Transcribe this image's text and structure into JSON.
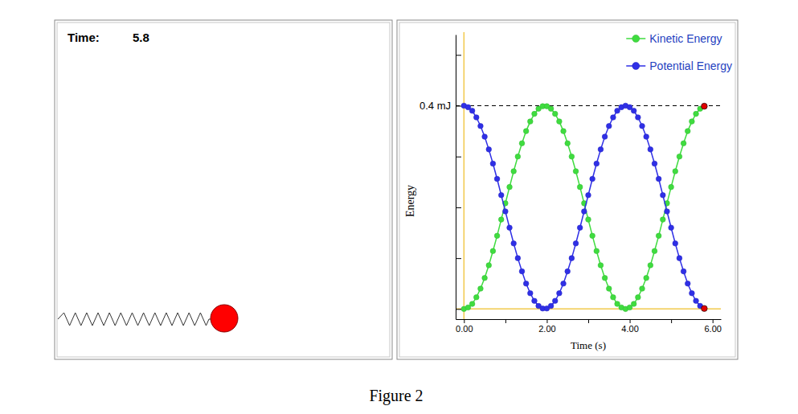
{
  "panel": {
    "time_label": "Time:",
    "time": 5.8
  },
  "caption": "Figure 2",
  "chart_data": {
    "type": "line",
    "xlabel": "Time (s)",
    "ylabel": "Energy",
    "x": [
      0,
      0.1,
      0.2,
      0.3,
      0.4,
      0.5,
      0.6,
      0.7,
      0.8,
      0.9,
      1,
      1.1,
      1.2,
      1.3,
      1.4,
      1.5,
      1.6,
      1.7,
      1.8,
      1.9,
      2,
      2.1,
      2.2,
      2.3,
      2.4,
      2.5,
      2.6,
      2.7,
      2.8,
      2.9,
      3,
      3.1,
      3.2,
      3.3,
      3.4,
      3.5,
      3.6,
      3.7,
      3.8,
      3.9,
      4,
      4.1,
      4.2,
      4.3,
      4.4,
      4.5,
      4.6,
      4.7,
      4.8,
      4.9,
      5,
      5.1,
      5.2,
      5.3,
      5.4,
      5.5,
      5.6,
      5.7,
      5.8
    ],
    "series": [
      {
        "name": "Kinetic Energy",
        "color": "#3fdc3f",
        "values": [
          0,
          0.003,
          0.01,
          0.023,
          0.04,
          0.061,
          0.086,
          0.114,
          0.144,
          0.176,
          0.208,
          0.24,
          0.271,
          0.3,
          0.326,
          0.35,
          0.369,
          0.384,
          0.394,
          0.399,
          0.399,
          0.394,
          0.384,
          0.369,
          0.35,
          0.326,
          0.3,
          0.271,
          0.24,
          0.208,
          0.176,
          0.144,
          0.114,
          0.086,
          0.061,
          0.04,
          0.023,
          0.01,
          0.003,
          0,
          0.003,
          0.01,
          0.023,
          0.04,
          0.061,
          0.086,
          0.114,
          0.144,
          0.176,
          0.208,
          0.24,
          0.271,
          0.3,
          0.326,
          0.35,
          0.369,
          0.384,
          0.394,
          0.399
        ]
      },
      {
        "name": "Potential Energy",
        "color": "#2f2fe6",
        "values": [
          0.4,
          0.397,
          0.39,
          0.377,
          0.36,
          0.339,
          0.314,
          0.286,
          0.256,
          0.224,
          0.192,
          0.16,
          0.129,
          0.1,
          0.074,
          0.05,
          0.031,
          0.016,
          0.006,
          0.001,
          0.001,
          0.006,
          0.016,
          0.031,
          0.05,
          0.074,
          0.1,
          0.129,
          0.16,
          0.192,
          0.224,
          0.256,
          0.286,
          0.314,
          0.339,
          0.36,
          0.377,
          0.39,
          0.397,
          0.4,
          0.397,
          0.39,
          0.377,
          0.36,
          0.339,
          0.314,
          0.286,
          0.256,
          0.224,
          0.192,
          0.16,
          0.129,
          0.1,
          0.074,
          0.05,
          0.031,
          0.016,
          0.006,
          0.001
        ]
      }
    ],
    "xlim": [
      -0.2,
      6.2
    ],
    "ylim": [
      -0.02,
      0.54
    ],
    "xticks": [
      {
        "value": 0,
        "label": "0.00"
      },
      {
        "value": 1,
        "label": null
      },
      {
        "value": 2,
        "label": "2.00"
      },
      {
        "value": 3,
        "label": null
      },
      {
        "value": 4,
        "label": "4.00"
      },
      {
        "value": 5,
        "label": null
      },
      {
        "value": 6,
        "label": "6.00"
      }
    ],
    "yticks": [
      {
        "value": 0,
        "label": null
      },
      {
        "value": 0.1,
        "label": null
      },
      {
        "value": 0.2,
        "label": null
      },
      {
        "value": 0.3,
        "label": null
      },
      {
        "value": 0.4,
        "label": "0.4 mJ"
      },
      {
        "value": 0.5,
        "label": null
      }
    ],
    "hlines": [
      0.4
    ],
    "legend": "top-right",
    "marker": "circle"
  }
}
